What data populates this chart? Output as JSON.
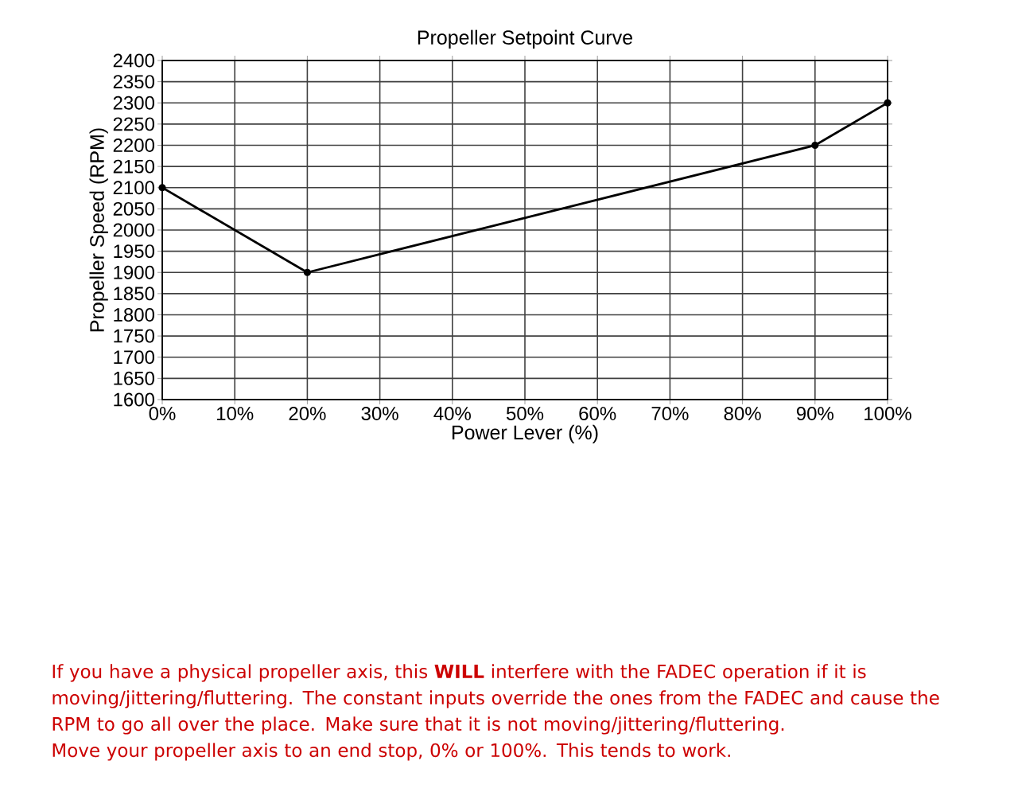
{
  "chart_data": {
    "type": "line",
    "title": "Propeller Setpoint Curve",
    "xlabel": "Power Lever (%)",
    "ylabel": "Propeller Speed (RPM)",
    "x": [
      0,
      20,
      90,
      100
    ],
    "series": [
      {
        "color": "#000000",
        "values": [
          2100,
          1900,
          2200,
          2300
        ]
      }
    ],
    "xlim": [
      0,
      100
    ],
    "xticks": [
      {
        "value": 0,
        "label": "0%"
      },
      {
        "value": 10,
        "label": "10%"
      },
      {
        "value": 20,
        "label": "20%"
      },
      {
        "value": 30,
        "label": "30%"
      },
      {
        "value": 40,
        "label": "40%"
      },
      {
        "value": 50,
        "label": "50%"
      },
      {
        "value": 60,
        "label": "60%"
      },
      {
        "value": 70,
        "label": "70%"
      },
      {
        "value": 80,
        "label": "80%"
      },
      {
        "value": 90,
        "label": "90%"
      },
      {
        "value": 100,
        "label": "100%"
      }
    ],
    "ylim": [
      1600,
      2400
    ],
    "yticks": [
      1600,
      1650,
      1700,
      1750,
      1800,
      1850,
      1900,
      1950,
      2000,
      2050,
      2100,
      2150,
      2200,
      2250,
      2300,
      2350,
      2400
    ],
    "grid": true,
    "marker": "circle",
    "line_style": "solid",
    "annotations": [
      "If you have a physical propeller axis, this **WILL** interfere with the FADEC operation if it is moving/jittering/fluttering. The constant inputs override the ones from the FADEC and cause the RPM to go all over the place. Make sure that it is not moving/jittering/fluttering.",
      "Move your propeller axis to an end stop, 0% or 100%. This tends to work."
    ]
  }
}
